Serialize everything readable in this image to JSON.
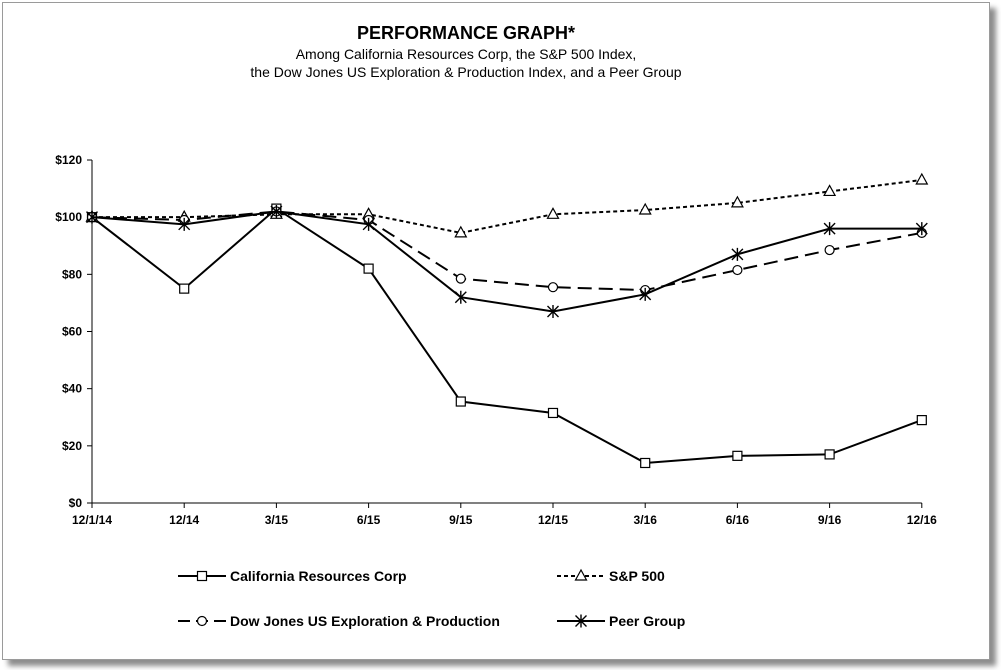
{
  "chart_data": {
    "type": "line",
    "title": "PERFORMANCE GRAPH*",
    "subtitle_lines": [
      "Among California Resources Corp, the S&P 500 Index,",
      "the Dow Jones US Exploration & Production Index, and a Peer Group"
    ],
    "categories": [
      "12/1/14",
      "12/14",
      "3/15",
      "6/15",
      "9/15",
      "12/15",
      "3/16",
      "6/16",
      "9/16",
      "12/16"
    ],
    "y_ticks": [
      "$0",
      "$20",
      "$40",
      "$60",
      "$80",
      "$100",
      "$120"
    ],
    "ylim": [
      0,
      120
    ],
    "series": [
      {
        "name": "California Resources Corp",
        "marker": "square",
        "dash": "solid",
        "values": [
          100,
          75,
          103,
          82,
          35.5,
          31.5,
          14,
          16.5,
          17,
          29
        ]
      },
      {
        "name": "S&P 500",
        "marker": "triangle",
        "dash": "dotted",
        "values": [
          100,
          100,
          101,
          101,
          94.5,
          101,
          102.5,
          105,
          109,
          113
        ]
      },
      {
        "name": "Dow Jones US Exploration & Production",
        "marker": "circle",
        "dash": "dashed",
        "values": [
          100,
          99,
          102,
          99,
          78.5,
          75.5,
          74.5,
          81.5,
          88.5,
          94.5
        ]
      },
      {
        "name": "Peer Group",
        "marker": "star",
        "dash": "solid",
        "values": [
          100,
          97.5,
          102,
          97.5,
          72,
          67,
          73,
          87,
          96,
          96
        ]
      }
    ]
  }
}
